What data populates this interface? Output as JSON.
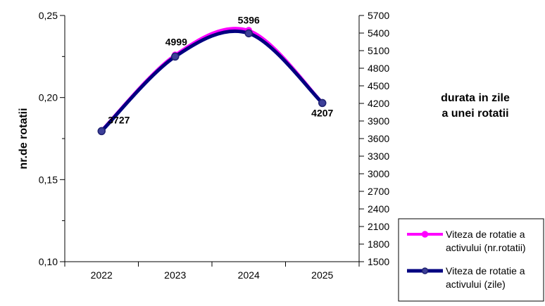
{
  "chart_data": {
    "type": "line",
    "categories": [
      "2022",
      "2023",
      "2024",
      "2025"
    ],
    "series": [
      {
        "name": "Viteza de rotatie a activului (nr.rotatii)",
        "axis": "left",
        "color": "#ff00ff",
        "values": [
          0.18,
          0.226,
          0.241,
          0.197
        ]
      },
      {
        "name": "Viteza de rotatie a activului (zile)",
        "axis": "right",
        "color": "#000080",
        "values": [
          3727,
          4999,
          5396,
          4207
        ],
        "data_labels": [
          "3727",
          "4999",
          "5396",
          "4207"
        ]
      }
    ],
    "y_left": {
      "label": "nr.de rotatii",
      "min": 0.1,
      "max": 0.25,
      "major_ticks": [
        "0,10",
        "0,15",
        "0,20",
        "0,25"
      ],
      "major_values": [
        0.1,
        0.15,
        0.2,
        0.25
      ],
      "minor_values": [
        0.125,
        0.175,
        0.225
      ]
    },
    "y_right": {
      "label_lines": [
        "durata in zile",
        "a unei rotatii"
      ],
      "min": 1500,
      "max": 5700,
      "tick_labels": [
        "1500",
        "1800",
        "2100",
        "2400",
        "2700",
        "3000",
        "3300",
        "3600",
        "3900",
        "4200",
        "4500",
        "4800",
        "5100",
        "5400",
        "5700"
      ],
      "tick_values": [
        1500,
        1800,
        2100,
        2400,
        2700,
        3000,
        3300,
        3600,
        3900,
        4200,
        4500,
        4800,
        5100,
        5400,
        5700
      ]
    },
    "legend": {
      "position": "bottom-right",
      "entries": [
        [
          "Viteza de rotatie a",
          "activului (nr.rotatii)"
        ],
        [
          "Viteza de rotatie a",
          "activului (zile)"
        ]
      ]
    },
    "grid": false
  }
}
